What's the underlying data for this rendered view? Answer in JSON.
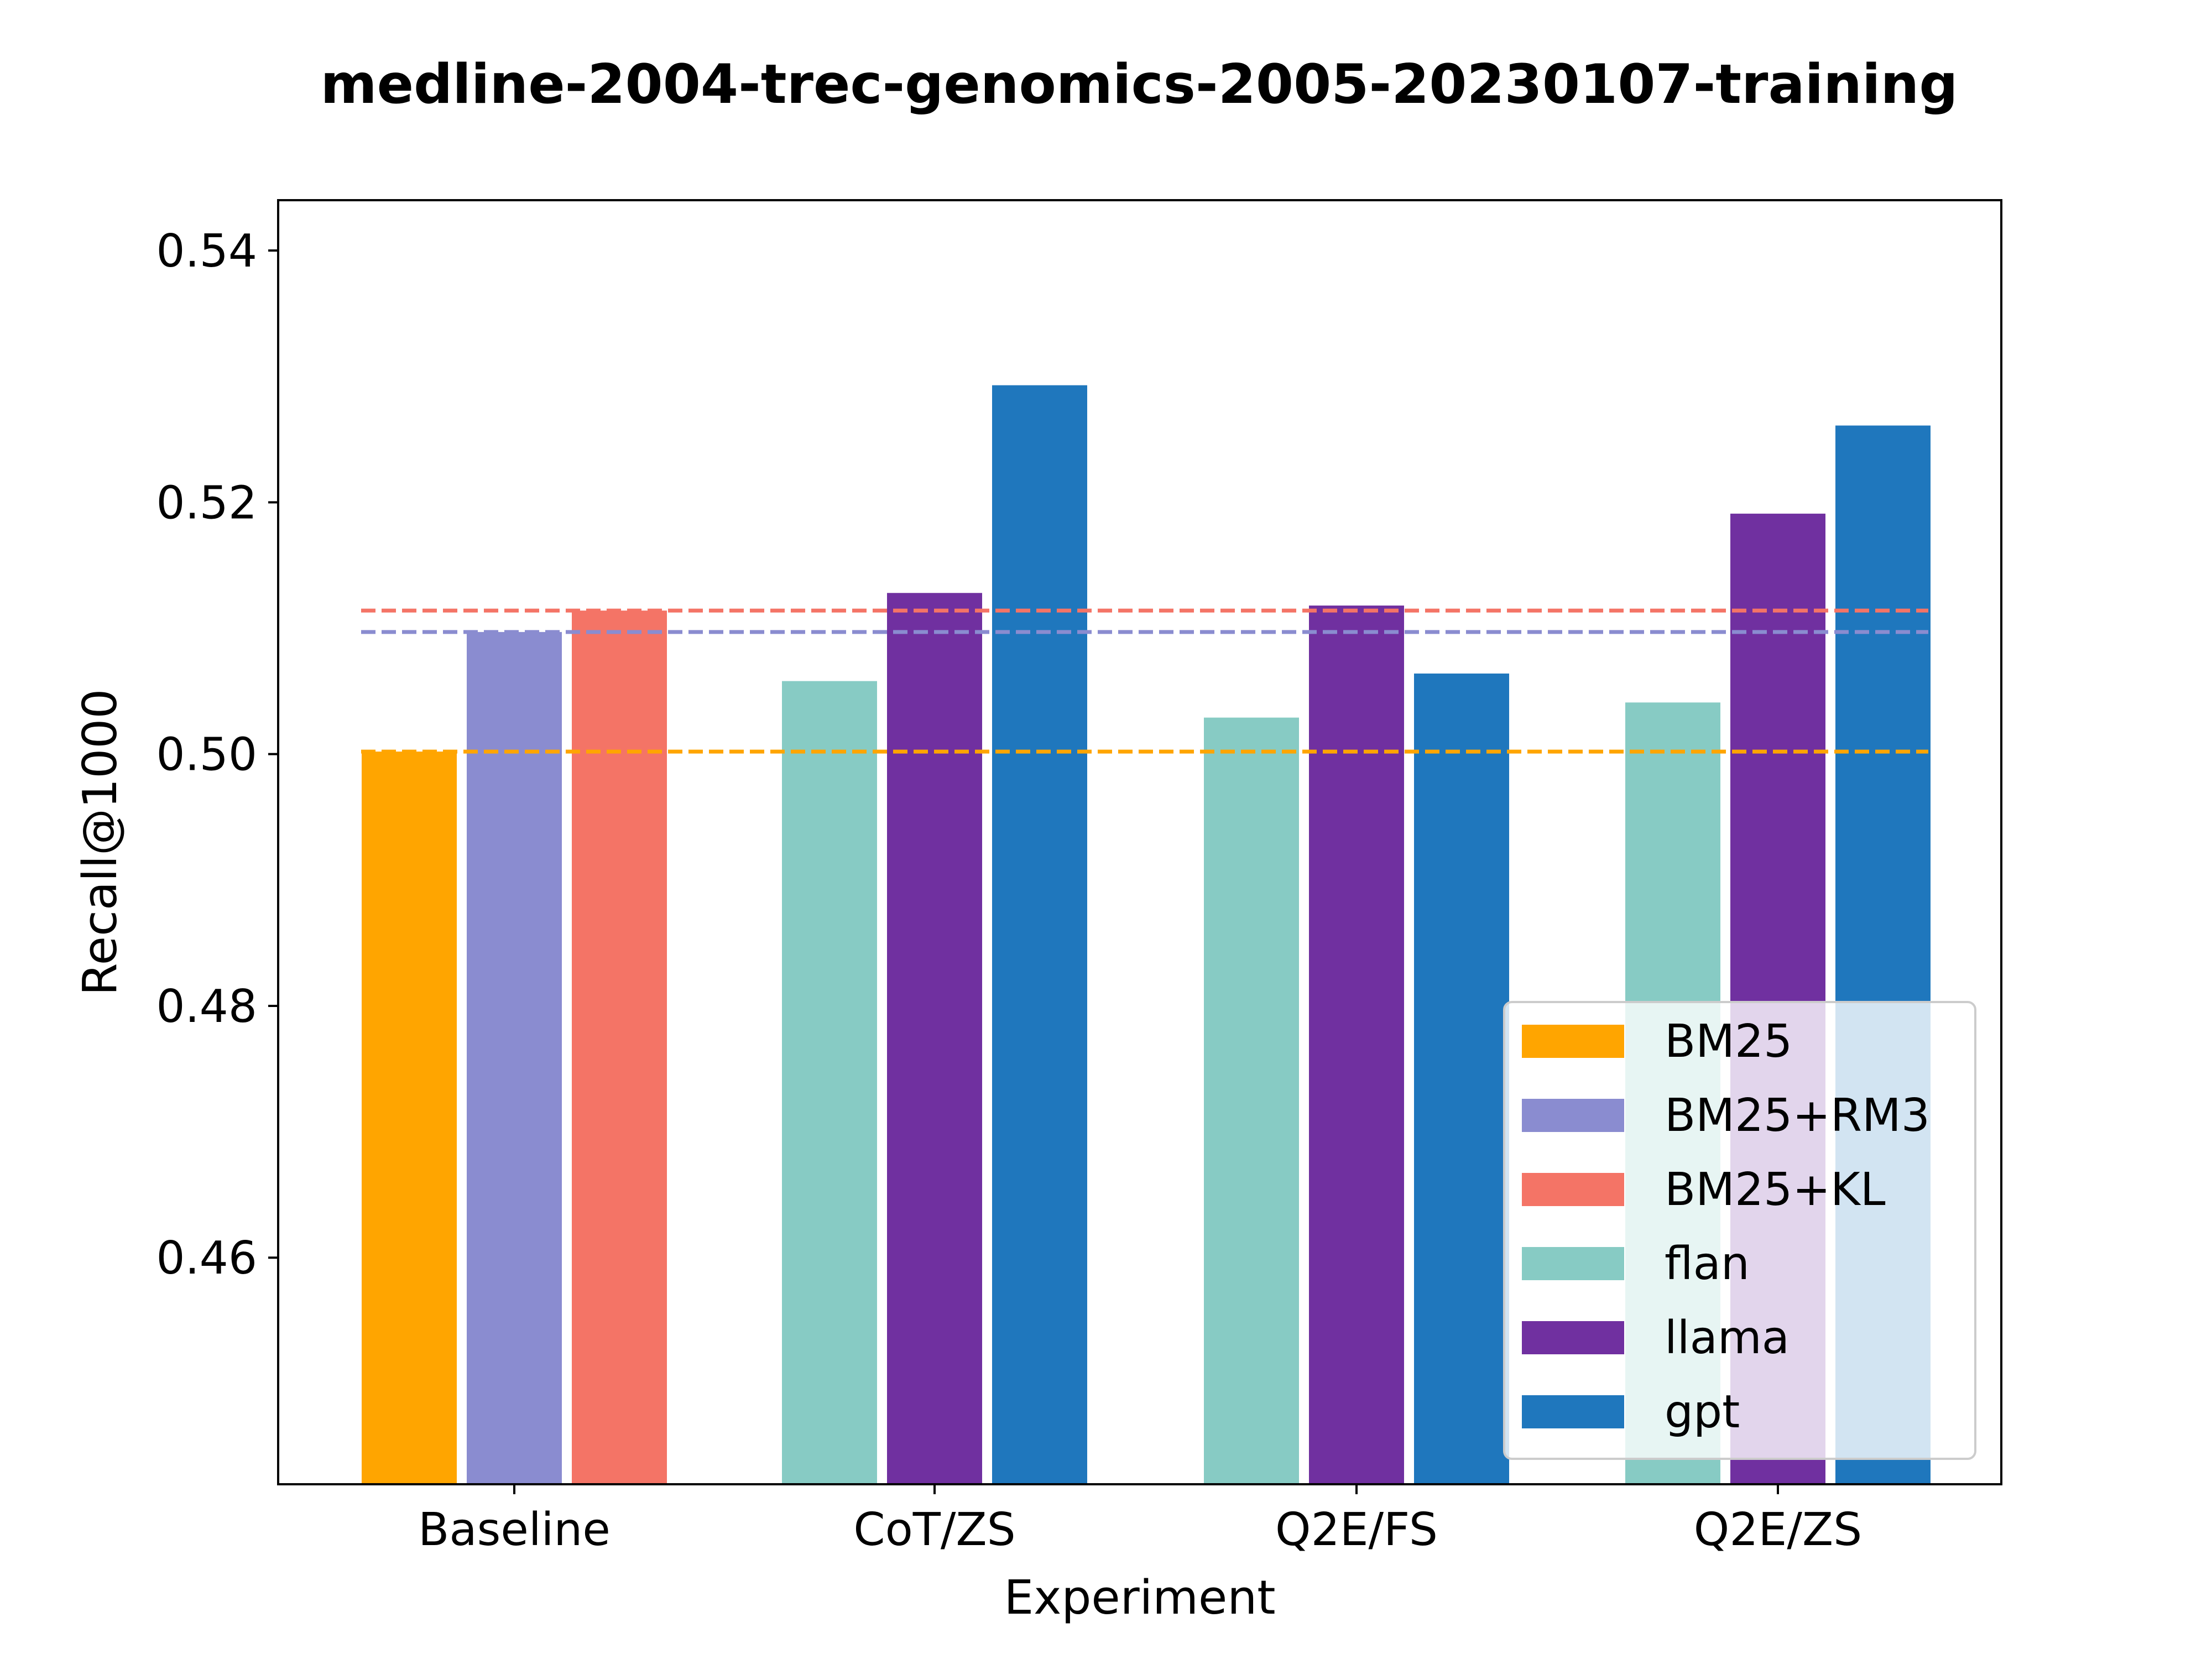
{
  "chart_data": {
    "type": "bar",
    "title": "medline-2004-trec-genomics-2005-20230107-training",
    "xlabel": "Experiment",
    "ylabel": "Recall@1000",
    "categories": [
      "Baseline",
      "CoT/ZS",
      "Q2E/FS",
      "Q2E/ZS"
    ],
    "ylim": [
      0.442,
      0.544
    ],
    "yticks": [
      0.46,
      0.48,
      0.5,
      0.52,
      0.54
    ],
    "ytick_labels": [
      "0.46",
      "0.48",
      "0.50",
      "0.52",
      "0.54"
    ],
    "grid": false,
    "legend_position": "lower-right",
    "series": [
      {
        "name": "BM25",
        "color": "#FFA500",
        "values": [
          0.5002,
          null,
          null,
          null
        ]
      },
      {
        "name": "BM25+RM3",
        "color": "#8A8CD0",
        "values": [
          0.5097,
          null,
          null,
          null
        ]
      },
      {
        "name": "BM25+KL",
        "color": "#F47466",
        "values": [
          0.5114,
          null,
          null,
          null
        ]
      },
      {
        "name": "flan",
        "color": "#87CBC4",
        "values": [
          null,
          0.5058,
          0.5029,
          0.5041
        ]
      },
      {
        "name": "llama",
        "color": "#7030A0",
        "values": [
          null,
          0.5128,
          0.5118,
          0.5191
        ]
      },
      {
        "name": "gpt",
        "color": "#1F77BD",
        "values": [
          null,
          0.5293,
          0.5064,
          0.5261
        ]
      }
    ],
    "reference_lines": [
      {
        "series": "BM25",
        "value": 0.5002,
        "style": "dashed"
      },
      {
        "series": "BM25+RM3",
        "value": 0.5097,
        "style": "dashed"
      },
      {
        "series": "BM25+KL",
        "value": 0.5114,
        "style": "dashed"
      }
    ]
  }
}
